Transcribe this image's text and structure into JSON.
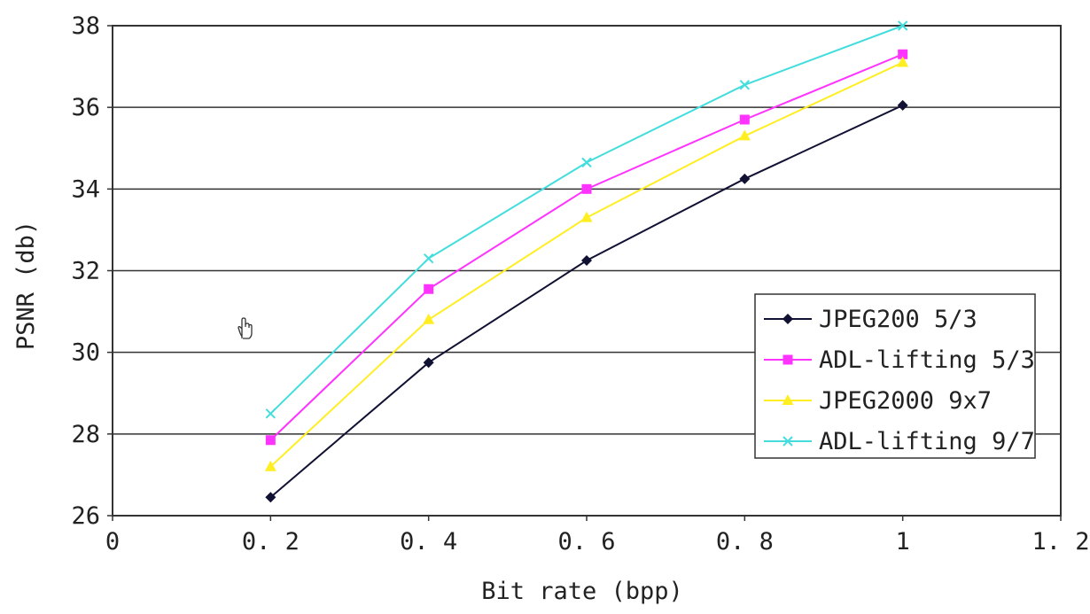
{
  "chart_data": {
    "type": "line",
    "xlabel": "Bit rate (bpp)",
    "ylabel": "PSNR (db)",
    "xlim": [
      0,
      1.2
    ],
    "ylim": [
      26,
      38
    ],
    "x_ticks": [
      "0",
      "0. 2",
      "0. 4",
      "0. 6",
      "0. 8",
      "1",
      "1. 2"
    ],
    "y_ticks": [
      "26",
      "28",
      "30",
      "32",
      "34",
      "36",
      "38"
    ],
    "x_tick_values": [
      0,
      0.2,
      0.4,
      0.6,
      0.8,
      1.0,
      1.2
    ],
    "y_tick_values": [
      26,
      28,
      30,
      32,
      34,
      36,
      38
    ],
    "grid": "horizontal",
    "legend_position": "right",
    "x": [
      0.2,
      0.4,
      0.6,
      0.8,
      1.0
    ],
    "series": [
      {
        "name": "JPEG200 5/3",
        "values": [
          26.45,
          29.75,
          32.25,
          34.25,
          36.05
        ],
        "color": "#111133",
        "marker": "diamond"
      },
      {
        "name": "ADL-lifting 5/3",
        "values": [
          27.85,
          31.55,
          34.0,
          35.7,
          37.3
        ],
        "color": "#ff33ff",
        "marker": "square"
      },
      {
        "name": "JPEG2000 9x7",
        "values": [
          27.2,
          30.8,
          33.3,
          35.3,
          37.1
        ],
        "color": "#ffee22",
        "marker": "triangle"
      },
      {
        "name": "ADL-lifting 9/7",
        "values": [
          28.5,
          32.3,
          34.65,
          36.55,
          38.0
        ],
        "color": "#44dddd",
        "marker": "x"
      }
    ]
  },
  "cursor": {
    "icon": "hand-cursor-icon"
  }
}
